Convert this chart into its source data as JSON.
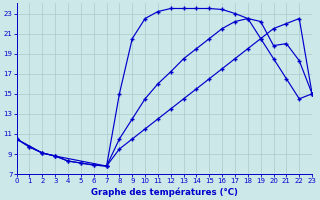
{
  "xlabel": "Graphe des températures (°C)",
  "background_color": "#cce8e8",
  "grid_color": "#aacccc",
  "line_color": "#0000cc",
  "xlim": [
    0,
    23
  ],
  "ylim": [
    7,
    24
  ],
  "yticks": [
    7,
    9,
    11,
    13,
    15,
    17,
    19,
    21,
    23
  ],
  "xticks": [
    0,
    1,
    2,
    3,
    4,
    5,
    6,
    7,
    8,
    9,
    10,
    11,
    12,
    13,
    14,
    15,
    16,
    17,
    18,
    19,
    20,
    21,
    22,
    23
  ],
  "curve1_x": [
    0,
    1,
    2,
    3,
    4,
    5,
    6,
    7,
    8,
    9,
    10,
    11,
    12,
    13,
    14,
    15,
    16,
    17,
    18,
    19,
    20,
    21,
    22,
    23
  ],
  "curve1_y": [
    10.5,
    9.7,
    9.1,
    8.8,
    8.3,
    8.1,
    7.9,
    7.8,
    10.5,
    12.5,
    14.5,
    16.0,
    17.2,
    18.5,
    19.5,
    20.5,
    21.5,
    22.2,
    22.5,
    20.5,
    18.5,
    16.5,
    14.5,
    15.0
  ],
  "curve2_x": [
    0,
    1,
    2,
    3,
    4,
    5,
    6,
    7,
    8,
    9,
    10,
    11,
    12,
    13,
    14,
    15,
    16,
    17,
    18,
    19,
    20,
    21,
    22,
    23
  ],
  "curve2_y": [
    10.5,
    9.7,
    9.1,
    8.8,
    8.3,
    8.1,
    7.9,
    7.8,
    9.5,
    10.5,
    11.5,
    12.5,
    13.5,
    14.5,
    15.5,
    16.5,
    17.5,
    18.5,
    19.5,
    20.5,
    21.5,
    22.0,
    22.5,
    15.0
  ],
  "curve3_x": [
    0,
    2,
    3,
    7,
    8,
    9,
    10,
    11,
    12,
    13,
    14,
    15,
    16,
    17,
    18,
    19,
    20,
    21,
    22,
    23
  ],
  "curve3_y": [
    10.5,
    9.1,
    8.8,
    7.8,
    15.0,
    20.5,
    22.5,
    23.2,
    23.5,
    23.5,
    23.5,
    23.5,
    23.4,
    23.0,
    22.5,
    22.2,
    19.8,
    20.0,
    18.3,
    15.0
  ]
}
